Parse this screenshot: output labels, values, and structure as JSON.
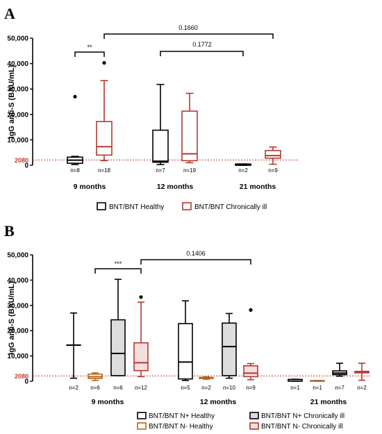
{
  "chart_data": [
    {
      "type": "box",
      "panel_label": "A",
      "ylabel": "IgG anti-S (BAU/mL)",
      "ylim": [
        0,
        50000
      ],
      "yticks": [
        "0",
        "10,000",
        "20,000",
        "30,000",
        "40,000",
        "50,000"
      ],
      "reference_line": {
        "value": 2080,
        "label": "2080",
        "color": "#c0392b"
      },
      "groups": [
        "9 months",
        "12 months",
        "21 months"
      ],
      "series": [
        {
          "name": "BNT/BNT Healthy",
          "color": "#000000",
          "fill": "#ffffff"
        },
        {
          "name": "BNT/BNT Chronically ill",
          "color": "#b03a2e",
          "fill": "#ffffff"
        }
      ],
      "boxes": [
        {
          "group": 0,
          "series": 0,
          "n": "n=8",
          "min": 300,
          "q1": 800,
          "median": 2000,
          "q3": 3200,
          "max": 3500,
          "outliers": [
            27000
          ]
        },
        {
          "group": 0,
          "series": 1,
          "n": "n=18",
          "min": 1800,
          "q1": 4000,
          "median": 7300,
          "q3": 17200,
          "max": 33300,
          "outliers": [
            40300
          ]
        },
        {
          "group": 1,
          "series": 0,
          "n": "n=7",
          "min": 300,
          "q1": 1200,
          "median": 1600,
          "q3": 13800,
          "max": 31800,
          "outliers": []
        },
        {
          "group": 1,
          "series": 1,
          "n": "n=19",
          "min": 1000,
          "q1": 1800,
          "median": 4500,
          "q3": 21300,
          "max": 28300,
          "outliers": []
        },
        {
          "group": 2,
          "series": 0,
          "n": "n=2",
          "min": 0,
          "q1": 0,
          "median": 200,
          "q3": 500,
          "max": 500,
          "outliers": []
        },
        {
          "group": 2,
          "series": 1,
          "n": "n=9",
          "min": 400,
          "q1": 2800,
          "median": 3800,
          "q3": 5800,
          "max": 7200,
          "outliers": []
        }
      ],
      "comparisons": [
        {
          "from_box": 0,
          "to_box": 1,
          "label": "**"
        },
        {
          "from_box": 2,
          "to_box": 4,
          "label": "0.1772"
        },
        {
          "from_box": 1,
          "to_box": 5,
          "label": "0.1660"
        }
      ]
    },
    {
      "type": "box",
      "panel_label": "B",
      "ylabel": "IgG anti-S (BAU/mL)",
      "ylim": [
        0,
        50000
      ],
      "yticks": [
        "0",
        "10,000",
        "20,000",
        "30,000",
        "40,000",
        "50,000"
      ],
      "reference_line": {
        "value": 2080,
        "label": "2080",
        "color": "#c0392b"
      },
      "groups": [
        "9 months",
        "12 months",
        "21 months"
      ],
      "series": [
        {
          "name": "BNT/BNT N+ Healthy",
          "color": "#000000",
          "fill": "#ffffff"
        },
        {
          "name": "BNT/BNT N- Healthy",
          "color": "#b5651d",
          "fill": "#ffffff"
        },
        {
          "name": "BNT/BNT N+ Chronically ill",
          "color": "#000000",
          "fill": "#dddddd"
        },
        {
          "name": "BNT/BNT N- Chronically ill",
          "color": "#b03a2e",
          "fill": "#f4dede"
        }
      ],
      "boxes": [
        {
          "group": 0,
          "series": 0,
          "n": "n=2",
          "min": 1200,
          "q1": 14300,
          "median": 14300,
          "q3": 14300,
          "max": 27000,
          "outliers": []
        },
        {
          "group": 0,
          "series": 1,
          "n": "n=6",
          "min": 300,
          "q1": 1100,
          "median": 1800,
          "q3": 2800,
          "max": 3300,
          "outliers": []
        },
        {
          "group": 0,
          "series": 2,
          "n": "n=6",
          "min": 2200,
          "q1": 2200,
          "median": 11000,
          "q3": 24300,
          "max": 40300,
          "outliers": []
        },
        {
          "group": 0,
          "series": 3,
          "n": "n=12",
          "min": 1800,
          "q1": 4200,
          "median": 7300,
          "q3": 15200,
          "max": 31300,
          "outliers": [
            33300
          ]
        },
        {
          "group": 1,
          "series": 0,
          "n": "n=5",
          "min": 300,
          "q1": 900,
          "median": 7600,
          "q3": 22800,
          "max": 31800,
          "outliers": []
        },
        {
          "group": 1,
          "series": 1,
          "n": "n=2",
          "min": 800,
          "q1": 1100,
          "median": 1300,
          "q3": 1500,
          "max": 1700,
          "outliers": []
        },
        {
          "group": 1,
          "series": 2,
          "n": "n=10",
          "min": 1200,
          "q1": 2200,
          "median": 13700,
          "q3": 23000,
          "max": 26800,
          "outliers": []
        },
        {
          "group": 1,
          "series": 3,
          "n": "n=9",
          "min": 600,
          "q1": 1800,
          "median": 3200,
          "q3": 6100,
          "max": 7000,
          "outliers": [
            28200
          ]
        },
        {
          "group": 2,
          "series": 0,
          "n": "n=1",
          "min": 0,
          "q1": 0,
          "median": 700,
          "q3": 700,
          "max": 800,
          "outliers": []
        },
        {
          "group": 2,
          "series": 1,
          "n": "n=1",
          "min": 0,
          "q1": 0,
          "median": 200,
          "q3": 200,
          "max": 300,
          "outliers": []
        },
        {
          "group": 2,
          "series": 2,
          "n": "n=7",
          "min": 2000,
          "q1": 2600,
          "median": 3200,
          "q3": 4100,
          "max": 7100,
          "outliers": []
        },
        {
          "group": 2,
          "series": 3,
          "n": "n=2",
          "min": 400,
          "q1": 3300,
          "median": 3800,
          "q3": 3900,
          "max": 7100,
          "outliers": []
        }
      ],
      "comparisons": [
        {
          "from_box": 2,
          "to_box": 3,
          "label": "***"
        },
        {
          "from_box": 3,
          "to_box": 7,
          "label": "0.1406"
        }
      ]
    }
  ]
}
